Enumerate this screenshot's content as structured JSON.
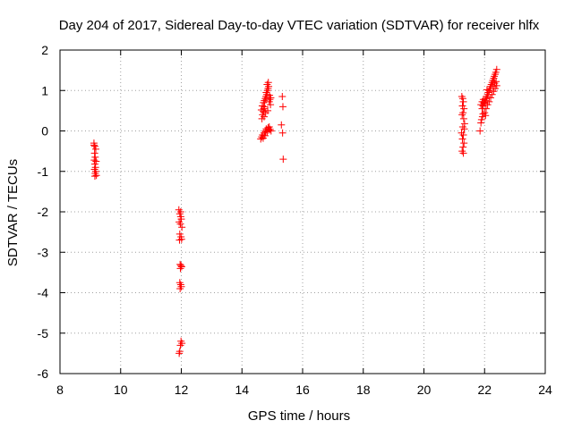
{
  "chart_data": {
    "type": "scatter",
    "title": "Day 204 of 2017, Sidereal Day-to-day VTEC variation (SDTVAR) for receiver hlfx",
    "xlabel": "GPS time / hours",
    "ylabel": "SDTVAR / TECUs",
    "xlim": [
      8,
      24
    ],
    "ylim": [
      -6,
      2
    ],
    "grid": true,
    "x_ticks": [
      8,
      10,
      12,
      14,
      16,
      18,
      20,
      22,
      24
    ],
    "y_ticks": [
      -6,
      -5,
      -4,
      -3,
      -2,
      -1,
      0,
      1,
      2
    ],
    "marker": "+",
    "marker_color": "#ff0000",
    "series": [
      {
        "name": "SDTVAR",
        "points": [
          [
            9.12,
            -0.3
          ],
          [
            9.15,
            -0.38
          ],
          [
            9.18,
            -0.45
          ],
          [
            9.14,
            -0.55
          ],
          [
            9.16,
            -0.65
          ],
          [
            9.13,
            -0.72
          ],
          [
            9.19,
            -0.75
          ],
          [
            9.15,
            -0.82
          ],
          [
            9.17,
            -0.9
          ],
          [
            9.14,
            -0.95
          ],
          [
            9.18,
            -1.0
          ],
          [
            9.16,
            -1.05
          ],
          [
            9.2,
            -1.1
          ],
          [
            9.15,
            -1.12
          ],
          [
            9.12,
            -0.35
          ],
          [
            11.92,
            -1.95
          ],
          [
            11.95,
            -2.05
          ],
          [
            11.98,
            -2.12
          ],
          [
            12.0,
            -2.18
          ],
          [
            11.93,
            -2.25
          ],
          [
            11.97,
            -2.3
          ],
          [
            12.02,
            -2.38
          ],
          [
            11.95,
            -2.55
          ],
          [
            11.99,
            -2.62
          ],
          [
            12.01,
            -2.68
          ],
          [
            11.94,
            -2.7
          ],
          [
            11.96,
            -3.3
          ],
          [
            11.99,
            -3.33
          ],
          [
            12.01,
            -3.36
          ],
          [
            11.97,
            -3.4
          ],
          [
            11.95,
            -3.75
          ],
          [
            11.98,
            -3.8
          ],
          [
            12.0,
            -3.85
          ],
          [
            11.96,
            -3.9
          ],
          [
            11.99,
            -5.2
          ],
          [
            12.02,
            -5.25
          ],
          [
            11.97,
            -5.3
          ],
          [
            11.95,
            -5.45
          ],
          [
            11.93,
            -5.5
          ],
          [
            11.98,
            -2.0
          ],
          [
            14.62,
            -0.2
          ],
          [
            14.65,
            -0.15
          ],
          [
            14.68,
            -0.1
          ],
          [
            14.7,
            -0.18
          ],
          [
            14.73,
            -0.05
          ],
          [
            14.76,
            -0.12
          ],
          [
            14.78,
            0.0
          ],
          [
            14.8,
            0.05
          ],
          [
            14.83,
            -0.02
          ],
          [
            14.86,
            0.08
          ],
          [
            14.88,
            0.02
          ],
          [
            14.9,
            0.1
          ],
          [
            14.93,
            0.04
          ],
          [
            14.96,
            0.0
          ],
          [
            14.66,
            0.3
          ],
          [
            14.68,
            0.4
          ],
          [
            14.7,
            0.48
          ],
          [
            14.72,
            0.55
          ],
          [
            14.75,
            0.6
          ],
          [
            14.64,
            0.52
          ],
          [
            14.67,
            0.62
          ],
          [
            14.71,
            0.7
          ],
          [
            14.74,
            0.75
          ],
          [
            14.77,
            0.8
          ],
          [
            14.79,
            0.85
          ],
          [
            14.82,
            0.9
          ],
          [
            14.8,
            0.95
          ],
          [
            14.84,
            1.0
          ],
          [
            14.86,
            1.05
          ],
          [
            14.88,
            1.1
          ],
          [
            14.83,
            1.15
          ],
          [
            14.87,
            1.2
          ],
          [
            14.9,
            0.72
          ],
          [
            14.92,
            0.78
          ],
          [
            14.94,
            0.65
          ],
          [
            14.85,
            0.5
          ],
          [
            14.78,
            0.45
          ],
          [
            14.73,
            0.35
          ],
          [
            14.91,
            0.88
          ],
          [
            14.95,
            0.82
          ],
          [
            15.33,
            0.85
          ],
          [
            15.35,
            0.6
          ],
          [
            15.3,
            0.15
          ],
          [
            15.34,
            -0.05
          ],
          [
            15.36,
            -0.7
          ],
          [
            21.25,
            0.85
          ],
          [
            21.28,
            0.8
          ],
          [
            21.3,
            0.72
          ],
          [
            21.27,
            0.62
          ],
          [
            21.32,
            0.55
          ],
          [
            21.29,
            0.45
          ],
          [
            21.26,
            0.4
          ],
          [
            21.31,
            0.3
          ],
          [
            21.28,
            0.1
          ],
          [
            21.33,
            0.05
          ],
          [
            21.3,
            -0.1
          ],
          [
            21.27,
            -0.2
          ],
          [
            21.32,
            -0.3
          ],
          [
            21.29,
            -0.4
          ],
          [
            21.26,
            -0.5
          ],
          [
            21.3,
            -0.55
          ],
          [
            21.34,
            0.18
          ],
          [
            21.24,
            -0.05
          ],
          [
            21.85,
            0.0
          ],
          [
            21.88,
            0.2
          ],
          [
            21.9,
            0.28
          ],
          [
            21.93,
            0.35
          ],
          [
            21.95,
            0.42
          ],
          [
            21.92,
            0.55
          ],
          [
            21.95,
            0.62
          ],
          [
            21.98,
            0.7
          ],
          [
            22.0,
            0.68
          ],
          [
            22.02,
            0.75
          ],
          [
            22.05,
            0.8
          ],
          [
            22.08,
            0.85
          ],
          [
            22.1,
            0.9
          ],
          [
            22.12,
            0.95
          ],
          [
            22.15,
            1.0
          ],
          [
            22.18,
            1.05
          ],
          [
            22.2,
            1.1
          ],
          [
            22.22,
            1.15
          ],
          [
            22.25,
            1.2
          ],
          [
            22.27,
            1.25
          ],
          [
            22.3,
            1.3
          ],
          [
            22.32,
            1.35
          ],
          [
            22.35,
            1.4
          ],
          [
            22.37,
            1.45
          ],
          [
            22.4,
            1.52
          ],
          [
            22.05,
            0.55
          ],
          [
            22.1,
            0.65
          ],
          [
            22.15,
            0.72
          ],
          [
            22.2,
            0.82
          ],
          [
            22.25,
            0.9
          ],
          [
            22.3,
            0.98
          ],
          [
            22.35,
            1.05
          ],
          [
            22.4,
            1.12
          ],
          [
            21.88,
            0.65
          ],
          [
            21.92,
            0.72
          ],
          [
            21.96,
            0.78
          ],
          [
            22.0,
            0.45
          ],
          [
            22.03,
            0.38
          ],
          [
            22.08,
            1.02
          ],
          [
            22.28,
            1.1
          ],
          [
            22.33,
            1.18
          ],
          [
            22.38,
            1.22
          ]
        ]
      }
    ]
  }
}
